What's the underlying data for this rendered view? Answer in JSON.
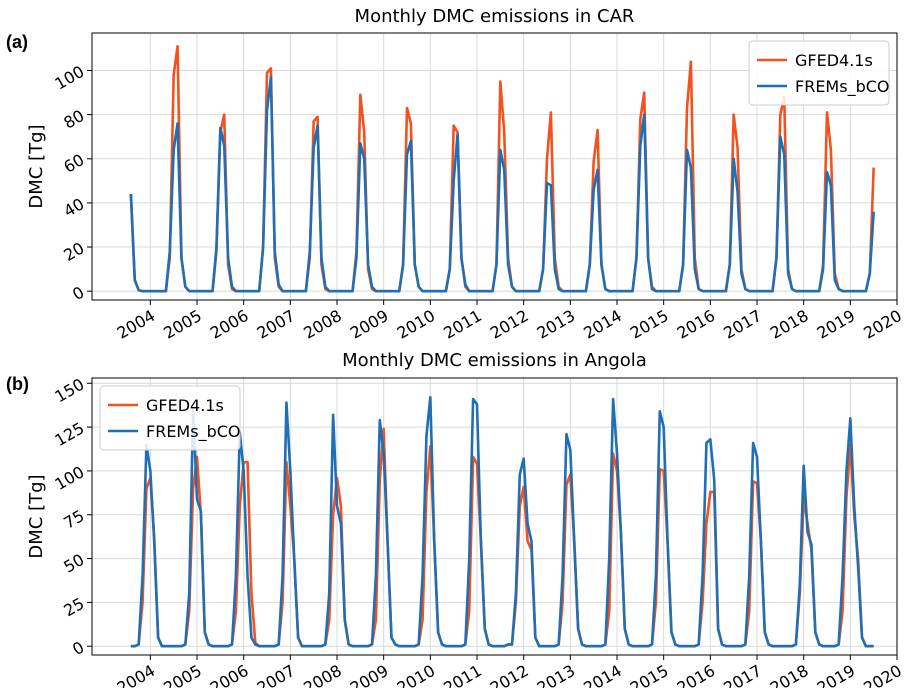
{
  "chart_data": [
    {
      "type": "line",
      "panel_label": "(a)",
      "title": "Monthly DMC emissions in CAR",
      "ylabel": "DMC [Tg]",
      "xlim": [
        -10,
        197
      ],
      "xticks": [
        {
          "value": 5,
          "label": "2004"
        },
        {
          "value": 17,
          "label": "2005"
        },
        {
          "value": 29,
          "label": "2006"
        },
        {
          "value": 41,
          "label": "2007"
        },
        {
          "value": 53,
          "label": "2008"
        },
        {
          "value": 65,
          "label": "2009"
        },
        {
          "value": 77,
          "label": "2010"
        },
        {
          "value": 89,
          "label": "2011"
        },
        {
          "value": 101,
          "label": "2012"
        },
        {
          "value": 113,
          "label": "2013"
        },
        {
          "value": 125,
          "label": "2014"
        },
        {
          "value": 137,
          "label": "2015"
        },
        {
          "value": 149,
          "label": "2016"
        },
        {
          "value": 161,
          "label": "2017"
        },
        {
          "value": 173,
          "label": "2018"
        },
        {
          "value": 185,
          "label": "2019"
        },
        {
          "value": 197,
          "label": "2020"
        }
      ],
      "ylim": [
        -4,
        117
      ],
      "yticks": [
        0,
        20,
        40,
        60,
        80,
        100
      ],
      "grid": true,
      "legend": "upper right",
      "series": [
        {
          "name": "GFED4.1s",
          "color": "#f4511e",
          "values": [
            44,
            5,
            0.5,
            0,
            0,
            0,
            0,
            0,
            0,
            0,
            15,
            98,
            111,
            15,
            2,
            0,
            0,
            0,
            0,
            0,
            0,
            0,
            18,
            72,
            80,
            12,
            1,
            0,
            0,
            0,
            0,
            0,
            0,
            0,
            20,
            99,
            101,
            15,
            2,
            0,
            0,
            0,
            0,
            0,
            0,
            0,
            15,
            77,
            79,
            12,
            1,
            0,
            0,
            0,
            0,
            0,
            0,
            0,
            18,
            89,
            72,
            10,
            1,
            0,
            0,
            0,
            0,
            0,
            0,
            0,
            12,
            83,
            76,
            12,
            2,
            0,
            0,
            0,
            0,
            0,
            0,
            0,
            10,
            75,
            72,
            15,
            2,
            0,
            0,
            0,
            0,
            0,
            0,
            0,
            12,
            95,
            72,
            15,
            2,
            0,
            0,
            0,
            0,
            0,
            0,
            0,
            10,
            60,
            81,
            15,
            2,
            0,
            0,
            0,
            0,
            0,
            0,
            0,
            12,
            59,
            73,
            12,
            1,
            0,
            0,
            0,
            0,
            0,
            0,
            0,
            15,
            78,
            90,
            15,
            2,
            0,
            0,
            0,
            0,
            0,
            0,
            0,
            12,
            83,
            104,
            15,
            1,
            0,
            0,
            0,
            0,
            0,
            0,
            0,
            12,
            80,
            65,
            10,
            1,
            0,
            0,
            0,
            0,
            0,
            0,
            0,
            15,
            80,
            88,
            10,
            1,
            0,
            0,
            0,
            0,
            0,
            0,
            0,
            12,
            81,
            64,
            8,
            1,
            0,
            0,
            0,
            0,
            0,
            0,
            0,
            8,
            56
          ]
        },
        {
          "name": "FREMs_bCO",
          "color": "#1f6fb4",
          "values": [
            44,
            5,
            0.5,
            0,
            0,
            0,
            0,
            0,
            0,
            0,
            18,
            64,
            76,
            15,
            2,
            0,
            0,
            0,
            0,
            0,
            0,
            0,
            20,
            74,
            66,
            15,
            2,
            0,
            0,
            0,
            0,
            0,
            0,
            0,
            20,
            82,
            97,
            18,
            3,
            0,
            0,
            0,
            0,
            0,
            0,
            0,
            18,
            65,
            75,
            15,
            2,
            0,
            0,
            0,
            0,
            0,
            0,
            0,
            15,
            67,
            60,
            12,
            2,
            0,
            0,
            0,
            0,
            0,
            0,
            0,
            12,
            62,
            68,
            12,
            2,
            0,
            0,
            0,
            0,
            0,
            0,
            0,
            10,
            50,
            71,
            15,
            3,
            0,
            0,
            0,
            0,
            0,
            0,
            0,
            12,
            64,
            55,
            12,
            2,
            0,
            0,
            0,
            0,
            0,
            0,
            0,
            10,
            49,
            48,
            10,
            1,
            0,
            0,
            0,
            0,
            0,
            0,
            0,
            12,
            46,
            55,
            12,
            1,
            0,
            0,
            0,
            0,
            0,
            0,
            0,
            15,
            66,
            80,
            15,
            1,
            0,
            0,
            0,
            0,
            0,
            0,
            0,
            12,
            64,
            56,
            10,
            1,
            0,
            0,
            0,
            0,
            0,
            0,
            0,
            12,
            60,
            45,
            8,
            1,
            0,
            0,
            0,
            0,
            0,
            0,
            0,
            15,
            70,
            62,
            8,
            1,
            0,
            0,
            0,
            0,
            0,
            0,
            0,
            10,
            54,
            48,
            5,
            1,
            0,
            0,
            0,
            0,
            0,
            0,
            0,
            8,
            36
          ]
        }
      ]
    },
    {
      "type": "line",
      "panel_label": "(b)",
      "title": "Monthly DMC emissions in Angola",
      "ylabel": "DMC [Tg]",
      "xlim": [
        -10,
        197
      ],
      "xticks": [
        {
          "value": 5,
          "label": "2004"
        },
        {
          "value": 17,
          "label": "2005"
        },
        {
          "value": 29,
          "label": "2006"
        },
        {
          "value": 41,
          "label": "2007"
        },
        {
          "value": 53,
          "label": "2008"
        },
        {
          "value": 65,
          "label": "2009"
        },
        {
          "value": 77,
          "label": "2010"
        },
        {
          "value": 89,
          "label": "2011"
        },
        {
          "value": 101,
          "label": "2012"
        },
        {
          "value": 113,
          "label": "2013"
        },
        {
          "value": 125,
          "label": "2014"
        },
        {
          "value": 137,
          "label": "2015"
        },
        {
          "value": 149,
          "label": "2016"
        },
        {
          "value": 161,
          "label": "2017"
        },
        {
          "value": 173,
          "label": "2018"
        },
        {
          "value": 185,
          "label": "2019"
        },
        {
          "value": 197,
          "label": "2020"
        }
      ],
      "ylim": [
        -5,
        153
      ],
      "yticks": [
        0,
        25,
        50,
        75,
        100,
        125,
        150
      ],
      "grid": true,
      "legend": "upper left",
      "series": [
        {
          "name": "GFED4.1s",
          "color": "#f4511e",
          "values": [
            0,
            0,
            1,
            25,
            90,
            96,
            62,
            5,
            0,
            0,
            0,
            0,
            0,
            0,
            1,
            20,
            90,
            108,
            75,
            8,
            1,
            0,
            0,
            0,
            0,
            0,
            1,
            20,
            80,
            105,
            105,
            30,
            2,
            0,
            0,
            0,
            0,
            0,
            1,
            25,
            105,
            80,
            50,
            5,
            0,
            0,
            0,
            0,
            0,
            0,
            1,
            15,
            75,
            96,
            80,
            15,
            1,
            0,
            0,
            0,
            0,
            0,
            1,
            15,
            95,
            124,
            60,
            5,
            1,
            0,
            0,
            0,
            0,
            0,
            1,
            15,
            88,
            114,
            60,
            8,
            1,
            0,
            0,
            0,
            0,
            0,
            1,
            20,
            108,
            104,
            60,
            10,
            1,
            0,
            0,
            0,
            0,
            1,
            1,
            25,
            80,
            91,
            60,
            55,
            5,
            0,
            0,
            0,
            0,
            0,
            1,
            25,
            92,
            98,
            60,
            10,
            1,
            0,
            0,
            0,
            0,
            0,
            1,
            20,
            110,
            100,
            65,
            10,
            1,
            0,
            0,
            0,
            0,
            0,
            1,
            25,
            101,
            100,
            60,
            8,
            1,
            0,
            0,
            0,
            0,
            0,
            1,
            25,
            70,
            88,
            88,
            10,
            1,
            0,
            0,
            0,
            0,
            0,
            1,
            20,
            94,
            93,
            60,
            8,
            1,
            0,
            0,
            0,
            0,
            0,
            0,
            1,
            30,
            85,
            70,
            55,
            8,
            1,
            0,
            0,
            0,
            0,
            1,
            20,
            85,
            115,
            75,
            50,
            5,
            0,
            0,
            0
          ]
        },
        {
          "name": "FREMs_bCO",
          "color": "#1f6fb4",
          "values": [
            0,
            0,
            1,
            40,
            115,
            100,
            60,
            5,
            0,
            0,
            0,
            0,
            0,
            0,
            1,
            30,
            135,
            84,
            77,
            8,
            1,
            0,
            0,
            0,
            0,
            0,
            1,
            40,
            122,
            100,
            40,
            5,
            1,
            0,
            0,
            0,
            0,
            0,
            1,
            40,
            139,
            100,
            50,
            5,
            0,
            0,
            0,
            0,
            0,
            0,
            1,
            30,
            132,
            80,
            70,
            15,
            1,
            0,
            0,
            0,
            0,
            0,
            1,
            40,
            129,
            110,
            60,
            5,
            1,
            0,
            0,
            0,
            0,
            0,
            1,
            40,
            120,
            142,
            60,
            8,
            1,
            0,
            0,
            0,
            0,
            0,
            1,
            50,
            141,
            138,
            60,
            10,
            1,
            0,
            0,
            0,
            0,
            1,
            1,
            30,
            98,
            107,
            70,
            60,
            5,
            0,
            0,
            0,
            0,
            0,
            1,
            40,
            121,
            112,
            60,
            10,
            1,
            0,
            0,
            0,
            0,
            0,
            1,
            50,
            141,
            110,
            65,
            10,
            1,
            0,
            0,
            0,
            0,
            0,
            1,
            40,
            134,
            125,
            60,
            8,
            1,
            0,
            0,
            0,
            0,
            0,
            1,
            40,
            116,
            118,
            95,
            10,
            1,
            0,
            0,
            0,
            0,
            0,
            1,
            40,
            116,
            108,
            60,
            8,
            1,
            0,
            0,
            0,
            0,
            0,
            0,
            1,
            35,
            103,
            65,
            58,
            8,
            1,
            0,
            0,
            0,
            0,
            1,
            40,
            100,
            130,
            80,
            45,
            5,
            0,
            0,
            0
          ]
        }
      ]
    }
  ]
}
